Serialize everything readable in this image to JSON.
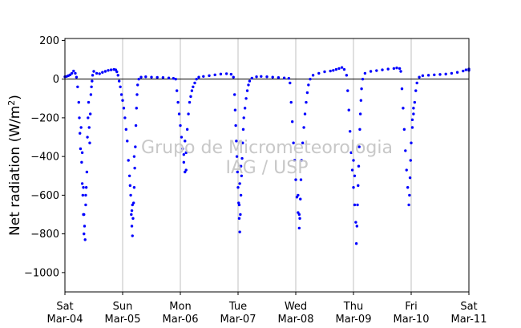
{
  "chart_data": {
    "type": "scatter",
    "title": "",
    "ylabel_text": "Net radiation (W/m",
    "ylabel_sup": "2",
    "ylabel_close": ")",
    "ylim": [
      -1100,
      210
    ],
    "xlim": [
      0,
      7
    ],
    "yticks": [
      200,
      0,
      -200,
      -400,
      -600,
      -800,
      -1000
    ],
    "ytick_labels": [
      "200",
      "0",
      "−200",
      "−400",
      "−600",
      "−800",
      "−1000"
    ],
    "xticks": [
      {
        "x": 0,
        "day": "Sat",
        "date": "Mar-04"
      },
      {
        "x": 1,
        "day": "Sun",
        "date": "Mar-05"
      },
      {
        "x": 2,
        "day": "Mon",
        "date": "Mar-06"
      },
      {
        "x": 3,
        "day": "Tue",
        "date": "Mar-07"
      },
      {
        "x": 4,
        "day": "Wed",
        "date": "Mar-08"
      },
      {
        "x": 5,
        "day": "Thu",
        "date": "Mar-09"
      },
      {
        "x": 6,
        "day": "Fri",
        "date": "Mar-10"
      },
      {
        "x": 7,
        "day": "Sat",
        "date": "Mar-11"
      }
    ],
    "grid": "vertical",
    "zero_line": 0,
    "marker_color": "#0000ff",
    "watermark_line1": "Grupo de Micrometeorologia",
    "watermark_line2": "IAG / USP",
    "series": [
      {
        "x_unit": "days since Sat Mar-04 00:00",
        "points": [
          [
            0.0,
            12
          ],
          [
            0.03,
            14
          ],
          [
            0.06,
            18
          ],
          [
            0.09,
            22
          ],
          [
            0.12,
            30
          ],
          [
            0.15,
            42
          ],
          [
            0.18,
            30
          ],
          [
            0.2,
            10
          ],
          [
            0.22,
            -40
          ],
          [
            0.24,
            -120
          ],
          [
            0.25,
            -200
          ],
          [
            0.26,
            -280
          ],
          [
            0.27,
            -360
          ],
          [
            0.28,
            -250
          ],
          [
            0.29,
            -430
          ],
          [
            0.3,
            -540
          ],
          [
            0.31,
            -600
          ],
          [
            0.32,
            -700
          ],
          [
            0.33,
            -800
          ],
          [
            0.34,
            -760
          ],
          [
            0.35,
            -830
          ],
          [
            0.36,
            -650
          ],
          [
            0.37,
            -560
          ],
          [
            0.38,
            -480
          ],
          [
            0.39,
            -300
          ],
          [
            0.4,
            -200
          ],
          [
            0.41,
            -120
          ],
          [
            0.42,
            -250
          ],
          [
            0.43,
            -330
          ],
          [
            0.44,
            -180
          ],
          [
            0.45,
            -80
          ],
          [
            0.46,
            -40
          ],
          [
            0.47,
            -10
          ],
          [
            0.48,
            20
          ],
          [
            0.5,
            40
          ],
          [
            0.55,
            30
          ],
          [
            0.6,
            28
          ],
          [
            0.65,
            35
          ],
          [
            0.7,
            40
          ],
          [
            0.75,
            45
          ],
          [
            0.8,
            48
          ],
          [
            0.85,
            50
          ],
          [
            0.88,
            48
          ],
          [
            0.9,
            38
          ],
          [
            0.92,
            20
          ],
          [
            0.94,
            -10
          ],
          [
            0.96,
            -40
          ],
          [
            0.98,
            -80
          ],
          [
            1.0,
            -110
          ],
          [
            1.02,
            -150
          ],
          [
            1.04,
            -200
          ],
          [
            1.06,
            -260
          ],
          [
            1.08,
            -320
          ],
          [
            1.1,
            -420
          ],
          [
            1.12,
            -500
          ],
          [
            1.14,
            -600
          ],
          [
            1.15,
            -700
          ],
          [
            1.16,
            -760
          ],
          [
            1.17,
            -810
          ],
          [
            1.18,
            -720
          ],
          [
            1.19,
            -640
          ],
          [
            1.2,
            -560
          ],
          [
            1.21,
            -460
          ],
          [
            1.22,
            -350
          ],
          [
            1.23,
            -240
          ],
          [
            1.24,
            -150
          ],
          [
            1.25,
            -80
          ],
          [
            1.26,
            -30
          ],
          [
            1.28,
            0
          ],
          [
            1.32,
            10
          ],
          [
            1.4,
            12
          ],
          [
            1.5,
            10
          ],
          [
            1.6,
            9
          ],
          [
            1.7,
            8
          ],
          [
            1.8,
            6
          ],
          [
            1.88,
            4
          ],
          [
            1.92,
            0
          ],
          [
            1.94,
            -60
          ],
          [
            1.96,
            -120
          ],
          [
            1.98,
            -180
          ],
          [
            2.0,
            -240
          ],
          [
            2.02,
            -300
          ],
          [
            2.04,
            -360
          ],
          [
            2.06,
            -430
          ],
          [
            2.08,
            -480
          ],
          [
            2.1,
            -380
          ],
          [
            2.12,
            -260
          ],
          [
            2.14,
            -180
          ],
          [
            2.16,
            -120
          ],
          [
            2.18,
            -90
          ],
          [
            2.2,
            -60
          ],
          [
            2.22,
            -40
          ],
          [
            2.25,
            -20
          ],
          [
            2.28,
            0
          ],
          [
            2.32,
            10
          ],
          [
            2.4,
            14
          ],
          [
            2.5,
            18
          ],
          [
            2.6,
            22
          ],
          [
            2.7,
            26
          ],
          [
            2.8,
            28
          ],
          [
            2.88,
            25
          ],
          [
            2.92,
            10
          ],
          [
            2.94,
            -80
          ],
          [
            2.95,
            -160
          ],
          [
            2.96,
            -240
          ],
          [
            2.97,
            -320
          ],
          [
            2.98,
            -400
          ],
          [
            2.99,
            -480
          ],
          [
            3.0,
            -560
          ],
          [
            3.01,
            -640
          ],
          [
            3.02,
            -720
          ],
          [
            3.03,
            -790
          ],
          [
            3.04,
            -700
          ],
          [
            3.05,
            -600
          ],
          [
            3.06,
            -500
          ],
          [
            3.07,
            -410
          ],
          [
            3.08,
            -330
          ],
          [
            3.09,
            -260
          ],
          [
            3.1,
            -200
          ],
          [
            3.12,
            -150
          ],
          [
            3.14,
            -100
          ],
          [
            3.16,
            -60
          ],
          [
            3.18,
            -30
          ],
          [
            3.2,
            -10
          ],
          [
            3.24,
            5
          ],
          [
            3.32,
            12
          ],
          [
            3.4,
            14
          ],
          [
            3.5,
            12
          ],
          [
            3.6,
            10
          ],
          [
            3.7,
            8
          ],
          [
            3.8,
            6
          ],
          [
            3.88,
            4
          ],
          [
            3.9,
            -20
          ],
          [
            3.92,
            -120
          ],
          [
            3.94,
            -220
          ],
          [
            3.96,
            -330
          ],
          [
            3.98,
            -420
          ],
          [
            4.0,
            -520
          ],
          [
            4.02,
            -610
          ],
          [
            4.04,
            -690
          ],
          [
            4.06,
            -770
          ],
          [
            4.07,
            -720
          ],
          [
            4.08,
            -620
          ],
          [
            4.09,
            -520
          ],
          [
            4.1,
            -420
          ],
          [
            4.12,
            -330
          ],
          [
            4.14,
            -250
          ],
          [
            4.16,
            -180
          ],
          [
            4.18,
            -120
          ],
          [
            4.2,
            -70
          ],
          [
            4.22,
            -30
          ],
          [
            4.25,
            0
          ],
          [
            4.3,
            20
          ],
          [
            4.4,
            30
          ],
          [
            4.5,
            38
          ],
          [
            4.6,
            42
          ],
          [
            4.65,
            45
          ],
          [
            4.7,
            50
          ],
          [
            4.75,
            55
          ],
          [
            4.8,
            60
          ],
          [
            4.84,
            50
          ],
          [
            4.88,
            20
          ],
          [
            4.9,
            -60
          ],
          [
            4.92,
            -160
          ],
          [
            4.94,
            -270
          ],
          [
            4.96,
            -380
          ],
          [
            4.98,
            -470
          ],
          [
            5.0,
            -560
          ],
          [
            5.02,
            -650
          ],
          [
            5.04,
            -740
          ],
          [
            5.05,
            -850
          ],
          [
            5.06,
            -760
          ],
          [
            5.07,
            -650
          ],
          [
            5.08,
            -550
          ],
          [
            5.09,
            -450
          ],
          [
            5.1,
            -350
          ],
          [
            5.11,
            -260
          ],
          [
            5.12,
            -180
          ],
          [
            5.13,
            -110
          ],
          [
            5.14,
            -50
          ],
          [
            5.16,
            0
          ],
          [
            5.2,
            30
          ],
          [
            5.3,
            40
          ],
          [
            5.4,
            44
          ],
          [
            5.5,
            48
          ],
          [
            5.6,
            52
          ],
          [
            5.7,
            55
          ],
          [
            5.75,
            58
          ],
          [
            5.8,
            55
          ],
          [
            5.82,
            40
          ],
          [
            5.84,
            -50
          ],
          [
            5.86,
            -150
          ],
          [
            5.88,
            -260
          ],
          [
            5.9,
            -370
          ],
          [
            5.92,
            -470
          ],
          [
            5.94,
            -560
          ],
          [
            5.96,
            -650
          ],
          [
            5.97,
            -600
          ],
          [
            5.98,
            -510
          ],
          [
            5.99,
            -420
          ],
          [
            6.0,
            -330
          ],
          [
            6.02,
            -250
          ],
          [
            6.04,
            -180
          ],
          [
            6.06,
            -120
          ],
          [
            6.08,
            -60
          ],
          [
            6.1,
            -20
          ],
          [
            6.14,
            10
          ],
          [
            6.2,
            18
          ],
          [
            6.3,
            20
          ],
          [
            6.4,
            22
          ],
          [
            6.5,
            24
          ],
          [
            6.6,
            26
          ],
          [
            6.7,
            30
          ],
          [
            6.8,
            35
          ],
          [
            6.9,
            42
          ],
          [
            6.95,
            48
          ],
          [
            7.0,
            52
          ],
          [
            7.0,
            45
          ],
          [
            2.1,
            -470
          ],
          [
            3.02,
            -650
          ],
          [
            4.04,
            -600
          ],
          [
            4.06,
            -700
          ],
          [
            5.0,
            -420
          ],
          [
            5.02,
            -500
          ],
          [
            6.02,
            -210
          ],
          [
            6.04,
            -150
          ],
          [
            0.33,
            -700
          ],
          [
            0.36,
            -600
          ],
          [
            1.17,
            -650
          ],
          [
            1.2,
            -400
          ],
          [
            3.03,
            -540
          ],
          [
            3.05,
            -450
          ],
          [
            0.3,
            -380
          ],
          [
            0.32,
            -560
          ],
          [
            1.13,
            -550
          ],
          [
            1.16,
            -680
          ],
          [
            2.06,
            -390
          ],
          [
            2.08,
            -320
          ]
        ]
      }
    ]
  }
}
